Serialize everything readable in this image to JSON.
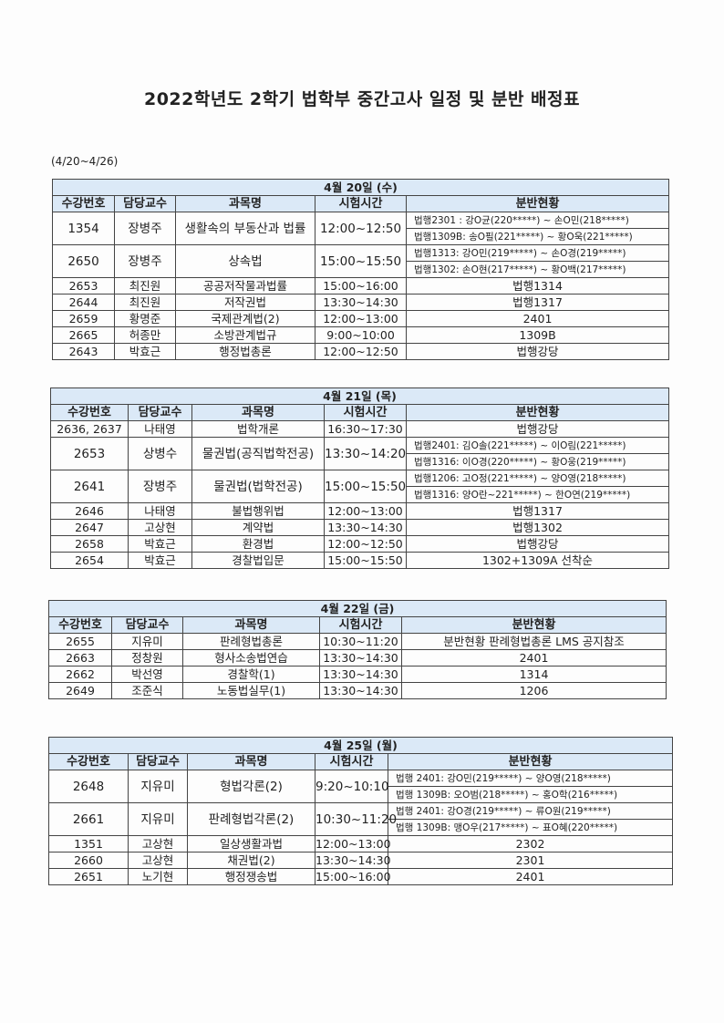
{
  "title": "2022학년도 2학기 법학부 중간고사 일정 및 분반 배정표",
  "period": "(4/20~4/26)",
  "columns": [
    "수강번호",
    "담당교수",
    "과목명",
    "시험시간",
    "분반현황"
  ],
  "days": [
    {
      "date": "4월 20일 (수)",
      "rows": [
        {
          "code": "1354",
          "professor": "장병주",
          "course": "생활속의 부동산과 법률",
          "time": "12:00~12:50",
          "alloc": [
            "법행2301 : 강O균(220*****) ~ 손O민(218*****)",
            "법행1309B: 송O필(221*****) ~ 황O욱(221*****)"
          ]
        },
        {
          "code": "2650",
          "professor": "장병주",
          "course": "상속법",
          "time": "15:00~15:50",
          "alloc": [
            "법행1313:  강O민(219*****) ~ 손O경(219*****)",
            "법행1302:  손O현(217*****) ~ 황O백(217*****)"
          ]
        },
        {
          "code": "2653",
          "professor": "최진원",
          "course": "공공저작물과법률",
          "time": "15:00~16:00",
          "alloc": [
            "법행1314"
          ]
        },
        {
          "code": "2644",
          "professor": "최진원",
          "course": "저작권법",
          "time": "13:30~14:30",
          "alloc": [
            "법행1317"
          ]
        },
        {
          "code": "2659",
          "professor": "황명준",
          "course": "국제관계법(2)",
          "time": "12:00~13:00",
          "alloc": [
            "2401"
          ]
        },
        {
          "code": "2665",
          "professor": "허종만",
          "course": "소방관계법규",
          "time": "9:00~10:00",
          "alloc": [
            "1309B"
          ]
        },
        {
          "code": "2643",
          "professor": "박효근",
          "course": "행정법총론",
          "time": "12:00~12:50",
          "alloc": [
            "법행강당"
          ]
        }
      ]
    },
    {
      "date": "4월 21일 (목)",
      "rows": [
        {
          "code": "2636, 2637",
          "professor": "나태영",
          "course": "법학개론",
          "time": "16:30~17:30",
          "alloc": [
            "법행강당"
          ]
        },
        {
          "code": "2653",
          "professor": "상병수",
          "course": "물권법(공직법학전공)",
          "time": "13:30~14:20",
          "alloc": [
            "법행2401: 김O솔(221*****) ~ 이O림(221*****)",
            "법행1316: 이O경(220*****) ~ 황O웅(219*****)"
          ]
        },
        {
          "code": "2641",
          "professor": "장병주",
          "course": "물권법(법학전공)",
          "time": "15:00~15:50",
          "alloc": [
            "법행1206: 고O정(221*****) ~ 양O영(218*****)",
            "법행1316: 양O란~221*****) ~ 한O연(219*****)"
          ]
        },
        {
          "code": "2646",
          "professor": "나태영",
          "course": "불법행위법",
          "time": "12:00~13:00",
          "alloc": [
            "법행1317"
          ]
        },
        {
          "code": "2647",
          "professor": "고상현",
          "course": "계약법",
          "time": "13:30~14:30",
          "alloc": [
            "법행1302"
          ]
        },
        {
          "code": "2658",
          "professor": "박효근",
          "course": "환경법",
          "time": "12:00~12:50",
          "alloc": [
            "법행강당"
          ]
        },
        {
          "code": "2654",
          "professor": "박효근",
          "course": "경찰법입문",
          "time": "15:00~15:50",
          "alloc": [
            "1302+1309A 선착순"
          ]
        }
      ]
    },
    {
      "date": "4월 22일 (금)",
      "rows": [
        {
          "code": "2655",
          "professor": "지유미",
          "course": "판례형법총론",
          "time": "10:30~11:20",
          "alloc": [
            "분반현황 판례형법총론 LMS 공지참조"
          ]
        },
        {
          "code": "2663",
          "professor": "정창원",
          "course": "형사소송법연습",
          "time": "13:30~14:30",
          "alloc": [
            "2401"
          ]
        },
        {
          "code": "2662",
          "professor": "박선영",
          "course": "경찰학(1)",
          "time": "13:30~14:30",
          "alloc": [
            "1314"
          ]
        },
        {
          "code": "2649",
          "professor": "조준식",
          "course": "노동법실무(1)",
          "time": "13:30~14:30",
          "alloc": [
            "1206"
          ]
        }
      ]
    },
    {
      "date": "4월 25일 (월)",
      "rows": [
        {
          "code": "2648",
          "professor": "지유미",
          "course": "형법각론(2)",
          "time": "9:20~10:10",
          "alloc": [
            "법행 2401: 강O민(219*****) ~ 양O영(218*****)",
            "법행 1309B: 오O범(218*****) ~ 홍O학(216*****)"
          ]
        },
        {
          "code": "2661",
          "professor": "지유미",
          "course": "판례형법각론(2)",
          "time": "10:30~11:20",
          "alloc": [
            "법행 2401: 강O경(219*****) ~ 류O원(219*****)",
            "법행 1309B: 맹O우(217*****) ~ 표O혜(220*****)"
          ]
        },
        {
          "code": "1351",
          "professor": "고상현",
          "course": "일상생활과법",
          "time": "12:00~13:00",
          "alloc": [
            "2302"
          ]
        },
        {
          "code": "2660",
          "professor": "고상현",
          "course": "채권법(2)",
          "time": "13:30~14:30",
          "alloc": [
            "2301"
          ]
        },
        {
          "code": "2651",
          "professor": "노기현",
          "course": "행정쟁송법",
          "time": "15:00~16:00",
          "alloc": [
            "2401"
          ]
        }
      ]
    }
  ]
}
